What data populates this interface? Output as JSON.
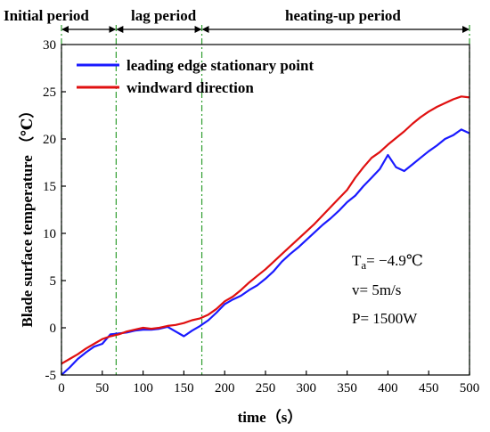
{
  "chart_data": {
    "type": "line",
    "xlabel": "time（s）",
    "ylabel": "Blade surface temperature （℃）",
    "xlim": [
      0,
      500
    ],
    "ylim": [
      -5,
      30
    ],
    "xticks": [
      0,
      50,
      100,
      150,
      200,
      250,
      300,
      350,
      400,
      450,
      500
    ],
    "yticks": [
      -5,
      0,
      5,
      10,
      15,
      20,
      25,
      30
    ],
    "grid": false,
    "legend_position": "top-left",
    "series": [
      {
        "name": "leading edge stationary point",
        "color": "#1a1aff",
        "points": [
          [
            0,
            -5
          ],
          [
            10,
            -4.2
          ],
          [
            20,
            -3.3
          ],
          [
            30,
            -2.6
          ],
          [
            40,
            -2
          ],
          [
            50,
            -1.7
          ],
          [
            55,
            -1.2
          ],
          [
            60,
            -0.7
          ],
          [
            70,
            -0.6
          ],
          [
            80,
            -0.5
          ],
          [
            90,
            -0.3
          ],
          [
            100,
            -0.2
          ],
          [
            110,
            -0.2
          ],
          [
            120,
            -0.1
          ],
          [
            130,
            0.1
          ],
          [
            140,
            -0.4
          ],
          [
            150,
            -0.9
          ],
          [
            160,
            -0.3
          ],
          [
            170,
            0.2
          ],
          [
            180,
            0.8
          ],
          [
            190,
            1.6
          ],
          [
            200,
            2.5
          ],
          [
            210,
            3
          ],
          [
            220,
            3.4
          ],
          [
            230,
            4
          ],
          [
            240,
            4.5
          ],
          [
            250,
            5.2
          ],
          [
            260,
            6
          ],
          [
            270,
            7
          ],
          [
            280,
            7.8
          ],
          [
            290,
            8.5
          ],
          [
            300,
            9.3
          ],
          [
            310,
            10.1
          ],
          [
            320,
            10.9
          ],
          [
            330,
            11.6
          ],
          [
            340,
            12.4
          ],
          [
            350,
            13.3
          ],
          [
            360,
            14
          ],
          [
            370,
            15
          ],
          [
            380,
            15.9
          ],
          [
            390,
            16.8
          ],
          [
            400,
            18.3
          ],
          [
            410,
            17
          ],
          [
            420,
            16.6
          ],
          [
            430,
            17.3
          ],
          [
            440,
            18
          ],
          [
            450,
            18.7
          ],
          [
            460,
            19.3
          ],
          [
            470,
            20
          ],
          [
            480,
            20.4
          ],
          [
            490,
            21
          ],
          [
            500,
            20.6
          ]
        ]
      },
      {
        "name": "windward direction",
        "color": "#e01010",
        "points": [
          [
            0,
            -3.8
          ],
          [
            10,
            -3.3
          ],
          [
            20,
            -2.8
          ],
          [
            30,
            -2.2
          ],
          [
            40,
            -1.7
          ],
          [
            50,
            -1.2
          ],
          [
            60,
            -0.9
          ],
          [
            70,
            -0.7
          ],
          [
            80,
            -0.4
          ],
          [
            90,
            -0.2
          ],
          [
            100,
            0
          ],
          [
            110,
            -0.1
          ],
          [
            120,
            0
          ],
          [
            130,
            0.2
          ],
          [
            140,
            0.3
          ],
          [
            150,
            0.5
          ],
          [
            160,
            0.8
          ],
          [
            170,
            1
          ],
          [
            180,
            1.4
          ],
          [
            190,
            2
          ],
          [
            200,
            2.8
          ],
          [
            210,
            3.3
          ],
          [
            220,
            4
          ],
          [
            230,
            4.8
          ],
          [
            240,
            5.5
          ],
          [
            250,
            6.2
          ],
          [
            260,
            7
          ],
          [
            270,
            7.8
          ],
          [
            280,
            8.6
          ],
          [
            290,
            9.4
          ],
          [
            300,
            10.2
          ],
          [
            310,
            11
          ],
          [
            320,
            11.9
          ],
          [
            330,
            12.8
          ],
          [
            340,
            13.7
          ],
          [
            350,
            14.6
          ],
          [
            360,
            15.9
          ],
          [
            370,
            17
          ],
          [
            380,
            18
          ],
          [
            390,
            18.6
          ],
          [
            400,
            19.4
          ],
          [
            410,
            20.1
          ],
          [
            420,
            20.8
          ],
          [
            430,
            21.6
          ],
          [
            440,
            22.3
          ],
          [
            450,
            22.9
          ],
          [
            460,
            23.4
          ],
          [
            470,
            23.8
          ],
          [
            480,
            24.2
          ],
          [
            490,
            24.5
          ],
          [
            500,
            24.4
          ]
        ]
      }
    ],
    "phase_boundaries": [
      0,
      67,
      172,
      500
    ],
    "phases": [
      "Initial period",
      "lag period",
      "heating-up period"
    ],
    "annotations": {
      "ta_main": "T",
      "ta_sub": "a",
      "ta_rest": "= −4.9℃",
      "v": "v= 5m/s",
      "p": "P= 1500W"
    },
    "colors": {
      "axis": "#000000",
      "phase_line": "#2e9e2e"
    }
  }
}
